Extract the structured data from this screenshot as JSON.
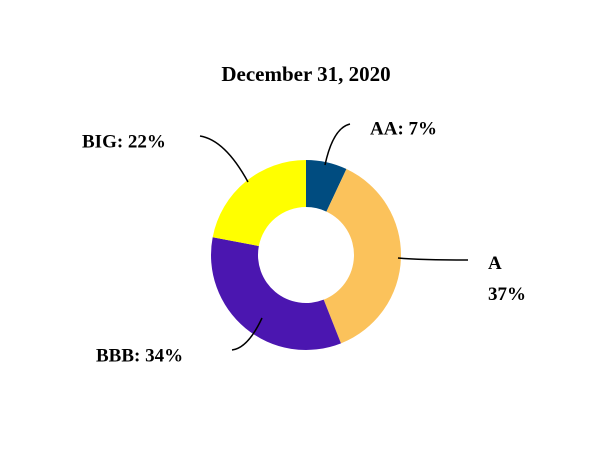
{
  "chart_data": {
    "type": "donut",
    "title": "December 31, 2020",
    "values": [
      7,
      37,
      34,
      22
    ],
    "value_labels": [
      "AA: 7%",
      [
        "A",
        "37%"
      ],
      "BBB: 34%",
      "BIG: 22%"
    ],
    "colors": [
      "#004c80",
      "#fbc25b",
      "#4b16b0",
      "#ffff00"
    ]
  }
}
